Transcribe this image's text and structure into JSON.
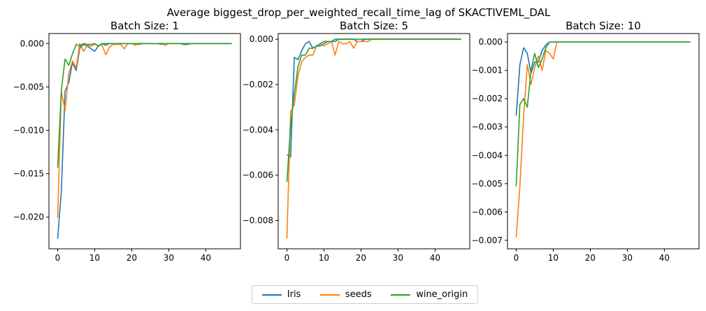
{
  "title": "Average biggest_drop_per_weighted_recall_time_lag of SKACTIVEML_DAL",
  "colors": {
    "Iris": "#1f77b4",
    "seeds": "#ff7f0e",
    "wine_origin": "#2ca02c"
  },
  "legend": [
    {
      "name": "Iris",
      "color": "#1f77b4"
    },
    {
      "name": "seeds",
      "color": "#ff7f0e"
    },
    {
      "name": "wine_origin",
      "color": "#2ca02c"
    }
  ],
  "chart_data": [
    {
      "type": "line",
      "title": "Batch Size: 1",
      "xlim": [
        -2.35,
        49.35
      ],
      "ylim": [
        -0.02365,
        0.00115
      ],
      "xticks": [
        0,
        10,
        20,
        30,
        40
      ],
      "xtick_labels": [
        "0",
        "10",
        "20",
        "30",
        "40"
      ],
      "yticks": [
        0.0,
        -0.005,
        -0.01,
        -0.015,
        -0.02
      ],
      "ytick_labels": [
        "0.000",
        "−0.005",
        "−0.010",
        "−0.015",
        "−0.020"
      ],
      "series": [
        {
          "name": "Iris",
          "x": [
            0,
            1,
            2,
            3,
            4,
            5,
            6,
            7,
            8,
            9,
            10,
            11,
            12,
            13,
            14,
            15,
            16,
            17,
            18,
            19,
            20,
            21,
            22,
            23,
            24,
            25,
            26,
            27,
            28,
            29,
            30,
            31,
            32,
            33,
            34,
            35,
            36,
            37,
            38,
            39,
            40,
            41,
            42,
            43,
            44,
            45,
            46,
            47
          ],
          "y": [
            -0.0225,
            -0.017,
            -0.0055,
            -0.0045,
            -0.0022,
            -0.0031,
            -0.0005,
            -0.0001,
            -0.0003,
            -0.0006,
            -0.0009,
            -0.0003,
            0,
            -0.0002,
            0,
            0,
            0,
            0,
            0,
            0,
            0,
            0,
            -0.0001,
            0,
            0,
            0,
            0,
            0,
            -0.0001,
            0,
            0,
            0,
            0,
            0,
            -0.0001,
            -0.0001,
            0,
            0,
            0,
            0,
            0,
            0,
            0,
            0,
            0,
            0,
            0,
            0
          ]
        },
        {
          "name": "seeds",
          "x": [
            0,
            1,
            2,
            3,
            4,
            5,
            6,
            7,
            8,
            9,
            10,
            11,
            12,
            13,
            14,
            15,
            16,
            17,
            18,
            19,
            20,
            21,
            22,
            23,
            24,
            25,
            26,
            27,
            28,
            29,
            30,
            31,
            32,
            33,
            34,
            35,
            36,
            37,
            38,
            39,
            40,
            41,
            42,
            43,
            44,
            45,
            46,
            47
          ],
          "y": [
            -0.0201,
            -0.0055,
            -0.0077,
            -0.0035,
            -0.002,
            -0.0028,
            0,
            -0.0009,
            -0.0002,
            -0.0003,
            -0.0001,
            -0.0002,
            -0.0002,
            -0.0013,
            -0.0004,
            -0.0001,
            -0.0001,
            -0.0001,
            -0.0006,
            0,
            0,
            -0.0002,
            0,
            0,
            0,
            0,
            0,
            0,
            0,
            -0.0002,
            0,
            0,
            0,
            0,
            0,
            0,
            0,
            0,
            0,
            0,
            0,
            0,
            0,
            0,
            0,
            0,
            0,
            0
          ]
        },
        {
          "name": "wine_origin",
          "x": [
            0,
            1,
            2,
            3,
            4,
            5,
            6,
            7,
            8,
            9,
            10,
            11,
            12,
            13,
            14,
            15,
            16,
            17,
            18,
            19,
            20,
            21,
            22,
            23,
            24,
            25,
            26,
            27,
            28,
            29,
            30,
            31,
            32,
            33,
            34,
            35,
            36,
            37,
            38,
            39,
            40,
            41,
            42,
            43,
            44,
            45,
            46,
            47
          ],
          "y": [
            -0.0143,
            -0.0054,
            -0.0018,
            -0.0025,
            -0.0012,
            -0.0001,
            -0.0003,
            0,
            -0.0001,
            -0.0001,
            0,
            -0.0003,
            0,
            0,
            0,
            0,
            0,
            0,
            0,
            0,
            0,
            0,
            0,
            0,
            0,
            0,
            0,
            0,
            0,
            0,
            0,
            0,
            0,
            0,
            0,
            0,
            0,
            0,
            0,
            0,
            0,
            0,
            0,
            0,
            0,
            0,
            0,
            0
          ]
        }
      ]
    },
    {
      "type": "line",
      "title": "Batch Size: 5",
      "xlim": [
        -2.35,
        49.35
      ],
      "ylim": [
        -0.00925,
        0.00025
      ],
      "xticks": [
        0,
        10,
        20,
        30,
        40
      ],
      "xtick_labels": [
        "0",
        "10",
        "20",
        "30",
        "40"
      ],
      "yticks": [
        0.0,
        -0.002,
        -0.004,
        -0.006,
        -0.008
      ],
      "ytick_labels": [
        "0.000",
        "−0.002",
        "−0.004",
        "−0.006",
        "−0.008"
      ],
      "series": [
        {
          "name": "Iris",
          "x": [
            0,
            1,
            2,
            3,
            4,
            5,
            6,
            7,
            8,
            9,
            10,
            11,
            12,
            13,
            14,
            15,
            16,
            17,
            18,
            19,
            20,
            21,
            22,
            23,
            24,
            25,
            26,
            27,
            28,
            29,
            30,
            31,
            32,
            33,
            34,
            35,
            36,
            37,
            38,
            39,
            40,
            41,
            42,
            43,
            44,
            45,
            46,
            47
          ],
          "y": [
            -0.0051,
            -0.0052,
            -0.0008,
            -0.0009,
            -0.0005,
            -0.0002,
            -0.0001,
            -0.0004,
            -0.0003,
            -0.0003,
            -0.0002,
            -0.0001,
            -0.0001,
            -0.0001,
            0,
            0,
            0,
            0,
            0,
            -0.0001,
            -0.0001,
            0,
            0,
            0,
            0,
            0,
            0,
            0,
            0,
            0,
            0,
            0,
            0,
            0,
            0,
            0,
            0,
            0,
            0,
            0,
            0,
            0,
            0,
            0,
            0,
            0,
            0,
            0
          ]
        },
        {
          "name": "seeds",
          "x": [
            0,
            1,
            2,
            3,
            4,
            5,
            6,
            7,
            8,
            9,
            10,
            11,
            12,
            13,
            14,
            15,
            16,
            17,
            18,
            19,
            20,
            21,
            22,
            23,
            24,
            25,
            26,
            27,
            28,
            29,
            30,
            31,
            32,
            33,
            34,
            35,
            36,
            37,
            38,
            39,
            40,
            41,
            42,
            43,
            44,
            45,
            46,
            47
          ],
          "y": [
            -0.0088,
            -0.0032,
            -0.0029,
            -0.0016,
            -0.001,
            -0.0008,
            -0.0007,
            -0.0007,
            -0.0003,
            -0.0002,
            -0.0003,
            -0.0002,
            -0.0001,
            -0.0007,
            -0.0001,
            -0.0002,
            -0.0002,
            -0.0001,
            -0.0004,
            -0.0001,
            -0.0001,
            -0.0001,
            -0.0001,
            0,
            0,
            0,
            0,
            0,
            0,
            0,
            0,
            0,
            0,
            0,
            0,
            0,
            0,
            0,
            0,
            0,
            0,
            0,
            0,
            0,
            0,
            0,
            0,
            0
          ]
        },
        {
          "name": "wine_origin",
          "x": [
            0,
            1,
            2,
            3,
            4,
            5,
            6,
            7,
            8,
            9,
            10,
            11,
            12,
            13,
            14,
            15,
            16,
            17,
            18,
            19,
            20,
            21,
            22,
            23,
            24,
            25,
            26,
            27,
            28,
            29,
            30,
            31,
            32,
            33,
            34,
            35,
            36,
            37,
            38,
            39,
            40,
            41,
            42,
            43,
            44,
            45,
            46,
            47
          ],
          "y": [
            -0.0063,
            -0.0038,
            -0.0024,
            -0.0012,
            -0.0007,
            -0.0007,
            -0.0004,
            -0.0004,
            -0.0003,
            -0.0002,
            -0.0001,
            -0.0001,
            -0.0001,
            0,
            0,
            0,
            0,
            0,
            0,
            0,
            0,
            0,
            0,
            0,
            0,
            0,
            0,
            0,
            0,
            0,
            0,
            0,
            0,
            0,
            0,
            0,
            0,
            0,
            0,
            0,
            0,
            0,
            0,
            0,
            0,
            0,
            0,
            0
          ]
        }
      ]
    },
    {
      "type": "line",
      "title": "Batch Size: 10",
      "xlim": [
        -2.35,
        49.35
      ],
      "ylim": [
        -0.0073,
        0.0003
      ],
      "xticks": [
        0,
        10,
        20,
        30,
        40
      ],
      "xtick_labels": [
        "0",
        "10",
        "20",
        "30",
        "40"
      ],
      "yticks": [
        0.0,
        -0.001,
        -0.002,
        -0.003,
        -0.004,
        -0.005,
        -0.006,
        -0.007
      ],
      "ytick_labels": [
        "0.000",
        "−0.001",
        "−0.002",
        "−0.003",
        "−0.004",
        "−0.005",
        "−0.006",
        "−0.007"
      ],
      "series": [
        {
          "name": "Iris",
          "x": [
            0,
            1,
            2,
            3,
            4,
            5,
            6,
            7,
            8,
            9,
            10,
            11,
            12,
            13,
            14,
            15,
            16,
            17,
            18,
            19,
            20,
            21,
            22,
            23,
            24,
            25,
            26,
            27,
            28,
            29,
            30,
            31,
            32,
            33,
            34,
            35,
            36,
            37,
            38,
            39,
            40,
            41,
            42,
            43,
            44,
            45,
            46,
            47
          ],
          "y": [
            -0.0026,
            -0.0008,
            -0.0002,
            -0.0004,
            -0.0011,
            -0.0007,
            -0.0007,
            -0.0003,
            -0.0001,
            0,
            0,
            0,
            0,
            0,
            0,
            0,
            0,
            0,
            0,
            0,
            0,
            0,
            0,
            0,
            0,
            0,
            0,
            0,
            0,
            0,
            0,
            0,
            0,
            0,
            0,
            0,
            0,
            0,
            0,
            0,
            0,
            0,
            0,
            0,
            0,
            0,
            0,
            0
          ]
        },
        {
          "name": "seeds",
          "x": [
            0,
            1,
            2,
            3,
            4,
            5,
            6,
            7,
            8,
            9,
            10,
            11,
            12,
            13,
            14,
            15,
            16,
            17,
            18,
            19,
            20,
            21,
            22,
            23,
            24,
            25,
            26,
            27,
            28,
            29,
            30,
            31,
            32,
            33,
            34,
            35,
            36,
            37,
            38,
            39,
            40,
            41,
            42,
            43,
            44,
            45,
            46,
            47
          ],
          "y": [
            -0.0069,
            -0.0051,
            -0.0026,
            -0.0008,
            -0.0015,
            -0.0009,
            -0.0005,
            -0.001,
            -0.0003,
            -0.0004,
            -0.0006,
            0,
            0,
            0,
            0,
            0,
            0,
            0,
            0,
            0,
            0,
            0,
            0,
            0,
            0,
            0,
            0,
            0,
            0,
            0,
            0,
            0,
            0,
            0,
            0,
            0,
            0,
            0,
            0,
            0,
            0,
            0,
            0,
            0,
            0,
            0,
            0,
            0
          ]
        },
        {
          "name": "wine_origin",
          "x": [
            0,
            1,
            2,
            3,
            4,
            5,
            6,
            7,
            8,
            9,
            10,
            11,
            12,
            13,
            14,
            15,
            16,
            17,
            18,
            19,
            20,
            21,
            22,
            23,
            24,
            25,
            26,
            27,
            28,
            29,
            30,
            31,
            32,
            33,
            34,
            35,
            36,
            37,
            38,
            39,
            40,
            41,
            42,
            43,
            44,
            45,
            46,
            47
          ],
          "y": [
            -0.0051,
            -0.0022,
            -0.002,
            -0.0023,
            -0.001,
            -0.0004,
            -0.0009,
            -0.0006,
            -0.0002,
            0,
            0,
            0,
            0,
            0,
            0,
            0,
            0,
            0,
            0,
            0,
            0,
            0,
            0,
            0,
            0,
            0,
            0,
            0,
            0,
            0,
            0,
            0,
            0,
            0,
            0,
            0,
            0,
            0,
            0,
            0,
            0,
            0,
            0,
            0,
            0,
            0,
            0,
            0
          ]
        }
      ]
    }
  ]
}
